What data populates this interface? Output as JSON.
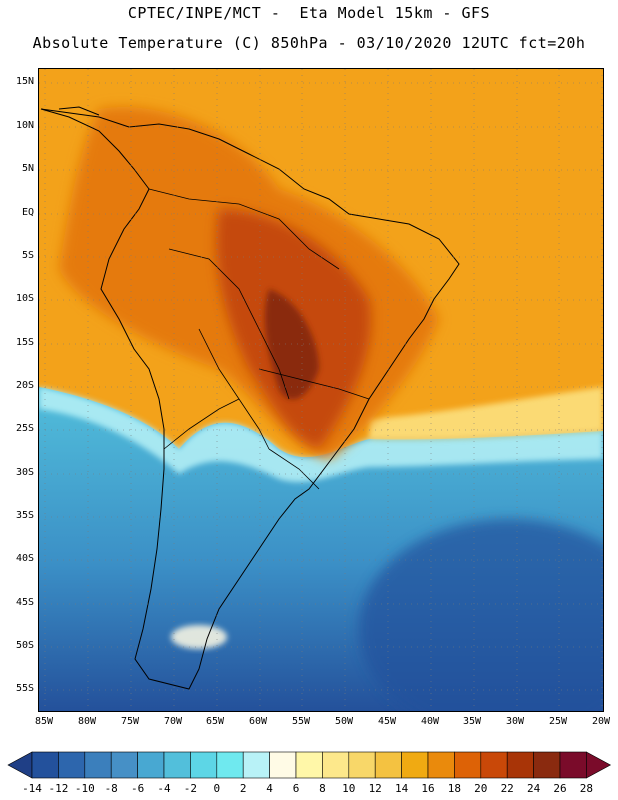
{
  "header": {
    "line1": "CPTEC/INPE/MCT -  Eta Model 15km - GFS",
    "line2": "Absolute Temperature (C) 850hPa - 03/10/2020 12UTC fct=20h"
  },
  "map": {
    "lat_labels": [
      "15N",
      "10N",
      "5N",
      "EQ",
      "5S",
      "10S",
      "15S",
      "20S",
      "25S",
      "30S",
      "35S",
      "40S",
      "45S",
      "50S",
      "55S"
    ],
    "lon_labels": [
      "85W",
      "80W",
      "75W",
      "70W",
      "65W",
      "60W",
      "55W",
      "50W",
      "45W",
      "40W",
      "35W",
      "30W",
      "25W",
      "20W"
    ]
  },
  "colorbar": {
    "levels": [
      "-14",
      "-12",
      "-10",
      "-8",
      "-6",
      "-4",
      "-2",
      "0",
      "2",
      "4",
      "6",
      "8",
      "10",
      "12",
      "14",
      "16",
      "18",
      "20",
      "22",
      "24",
      "26",
      "28"
    ],
    "colors": [
      "#1f3f86",
      "#23519c",
      "#2d66ad",
      "#3b7fbc",
      "#4690c6",
      "#48a8d2",
      "#52bfdb",
      "#5dd6e6",
      "#6fe9ef",
      "#b8f2f7",
      "#fffbe6",
      "#fff7a8",
      "#fde88b",
      "#f8d769",
      "#f4c241",
      "#f0aa12",
      "#ea8a0c",
      "#dd6206",
      "#c94808",
      "#a83407",
      "#8a2a0f",
      "#7a0b2a",
      "#7a0b2a"
    ]
  }
}
